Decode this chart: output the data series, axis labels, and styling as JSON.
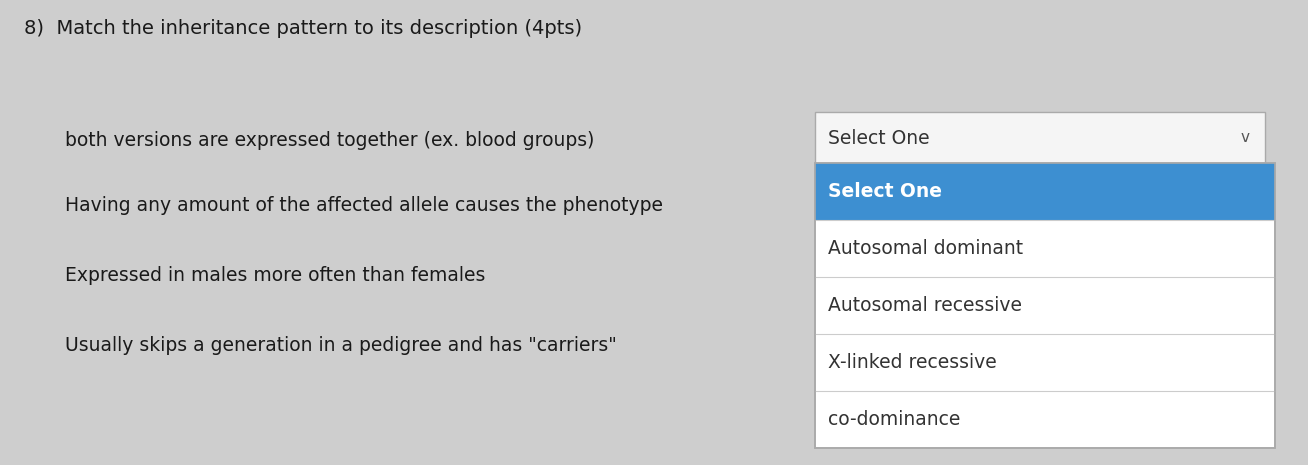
{
  "title": "8)  Match the inheritance pattern to its description (4pts)",
  "background_color": "#cecece",
  "questions": [
    "both versions are expressed together (ex. blood groups)",
    "Having any amount of the affected allele causes the phenotype",
    "Expressed in males more often than females",
    "Usually skips a generation in a pedigree and has \"carriers\""
  ],
  "dropdown_first_label": "Select One",
  "dropdown_options": [
    "Select One",
    "Autosomal dominant",
    "Autosomal recessive",
    "X-linked recessive",
    "co-dominance"
  ],
  "dropdown_highlight_color": "#3d8fd1",
  "dropdown_text_color_highlighted": "#ffffff",
  "dropdown_text_color_normal": "#333333",
  "title_fontsize": 14,
  "question_fontsize": 13.5,
  "option_fontsize": 13.5,
  "chevron_char": "v"
}
